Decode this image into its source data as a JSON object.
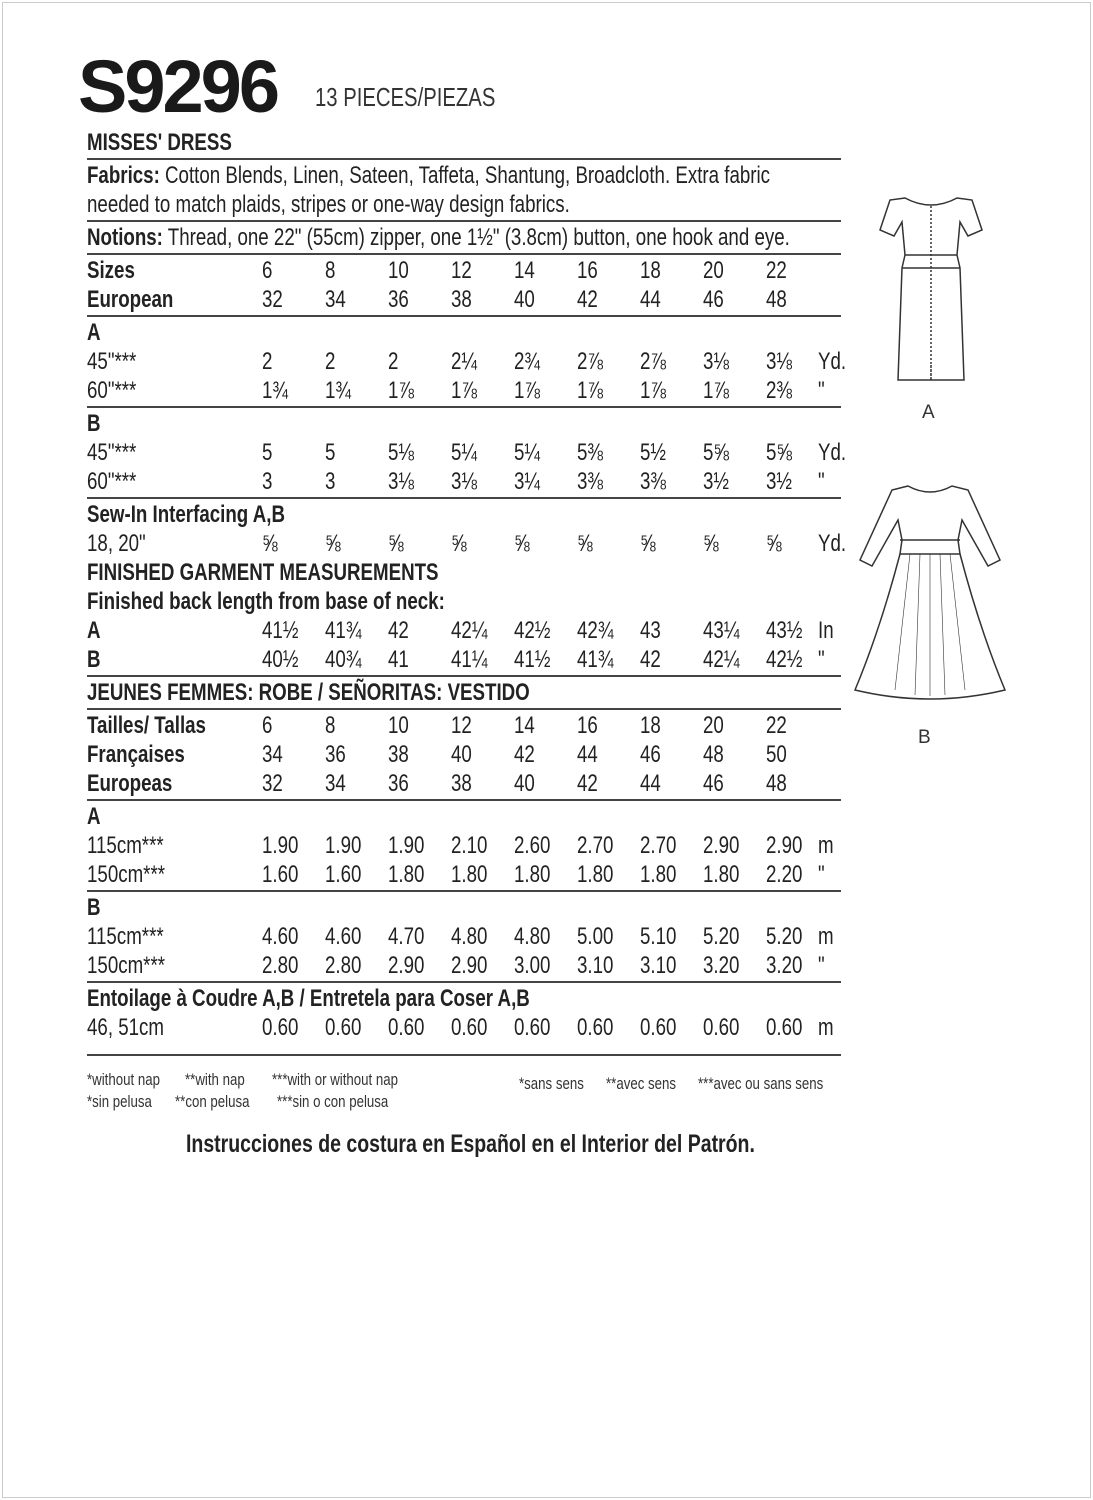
{
  "header": {
    "code": "S9296",
    "pieces": "13 PIECES/PIEZAS"
  },
  "title": "MISSES' DRESS",
  "fabrics": {
    "label": "Fabrics:",
    "line1": " Cotton Blends, Linen, Sateen, Taffeta, Shantung, Broadcloth. Extra fabric",
    "line2": "needed to match plaids, stripes or one-way design fabrics."
  },
  "notions": {
    "label": "Notions:",
    "text": " Thread, one 22\" (55cm) zipper, one 1½\" (3.8cm) button, one hook and eye."
  },
  "sections": [
    {
      "rows": [
        {
          "label": "Sizes",
          "bold": true,
          "values": [
            "6",
            "8",
            "10",
            "12",
            "14",
            "16",
            "18",
            "20",
            "22"
          ],
          "unit": ""
        },
        {
          "label": "European",
          "bold": true,
          "values": [
            "32",
            "34",
            "36",
            "38",
            "40",
            "42",
            "44",
            "46",
            "48"
          ],
          "unit": ""
        }
      ]
    },
    {
      "heading": "A",
      "rows": [
        {
          "label": "45\"***",
          "values": [
            "2",
            "2",
            "2",
            "2¼",
            "2¾",
            "2⅞",
            "2⅞",
            "3⅛",
            "3⅛"
          ],
          "unit": "Yd."
        },
        {
          "label": "60\"***",
          "values": [
            "1¾",
            "1¾",
            "1⅞",
            "1⅞",
            "1⅞",
            "1⅞",
            "1⅞",
            "1⅞",
            "2⅜"
          ],
          "unit": "\""
        }
      ]
    },
    {
      "heading": "B",
      "rows": [
        {
          "label": "45\"***",
          "values": [
            "5",
            "5",
            "5⅛",
            "5¼",
            "5¼",
            "5⅜",
            "5½",
            "5⅝",
            "5⅝"
          ],
          "unit": "Yd."
        },
        {
          "label": "60\"***",
          "values": [
            "3",
            "3",
            "3⅛",
            "3⅛",
            "3¼",
            "3⅜",
            "3⅜",
            "3½",
            "3½"
          ],
          "unit": "\""
        }
      ]
    },
    {
      "heading": "Sew-In Interfacing A,B",
      "noline": true,
      "rows": [
        {
          "label": "18, 20\"",
          "values": [
            "⅝",
            "⅝",
            "⅝",
            "⅝",
            "⅝",
            "⅝",
            "⅝",
            "⅝",
            "⅝"
          ],
          "unit": "Yd."
        }
      ]
    },
    {
      "heading": "FINISHED GARMENT MEASUREMENTS",
      "subheading": "Finished back length from base of neck:",
      "rows": [
        {
          "label": "A",
          "bold": true,
          "values": [
            "41½",
            "41¾",
            "42",
            "42¼",
            "42½",
            "42¾",
            "43",
            "43¼",
            "43½"
          ],
          "unit": "In"
        },
        {
          "label": "B",
          "bold": true,
          "values": [
            "40½",
            "40¾",
            "41",
            "41¼",
            "41½",
            "41¾",
            "42",
            "42¼",
            "42½"
          ],
          "unit": "\""
        }
      ]
    },
    {
      "heading": "JEUNES FEMMES: ROBE / SEÑORITAS: VESTIDO",
      "rows": []
    },
    {
      "rows": [
        {
          "label": "Tailles/ Tallas",
          "bold": true,
          "values": [
            "6",
            "8",
            "10",
            "12",
            "14",
            "16",
            "18",
            "20",
            "22"
          ],
          "unit": ""
        },
        {
          "label": "Françaises",
          "bold": true,
          "values": [
            "34",
            "36",
            "38",
            "40",
            "42",
            "44",
            "46",
            "48",
            "50"
          ],
          "unit": ""
        },
        {
          "label": "Europeas",
          "bold": true,
          "values": [
            "32",
            "34",
            "36",
            "38",
            "40",
            "42",
            "44",
            "46",
            "48"
          ],
          "unit": ""
        }
      ]
    },
    {
      "heading": "A",
      "rows": [
        {
          "label": "115cm***",
          "values": [
            "1.90",
            "1.90",
            "1.90",
            "2.10",
            "2.60",
            "2.70",
            "2.70",
            "2.90",
            "2.90"
          ],
          "unit": "m"
        },
        {
          "label": "150cm***",
          "values": [
            "1.60",
            "1.60",
            "1.80",
            "1.80",
            "1.80",
            "1.80",
            "1.80",
            "1.80",
            "2.20"
          ],
          "unit": "\""
        }
      ]
    },
    {
      "heading": "B",
      "rows": [
        {
          "label": "115cm***",
          "values": [
            "4.60",
            "4.60",
            "4.70",
            "4.80",
            "4.80",
            "5.00",
            "5.10",
            "5.20",
            "5.20"
          ],
          "unit": "m"
        },
        {
          "label": "150cm***",
          "values": [
            "2.80",
            "2.80",
            "2.90",
            "2.90",
            "3.00",
            "3.10",
            "3.10",
            "3.20",
            "3.20"
          ],
          "unit": "\""
        }
      ]
    },
    {
      "heading": "Entoilage à Coudre A,B / Entretela para Coser A,B",
      "rows": [
        {
          "label": "46, 51cm",
          "values": [
            "0.60",
            "0.60",
            "0.60",
            "0.60",
            "0.60",
            "0.60",
            "0.60",
            "0.60",
            "0.60"
          ],
          "unit": "m"
        }
      ]
    }
  ],
  "footnotes": {
    "en": [
      "*without nap",
      "**with nap",
      "***with or without nap"
    ],
    "es": [
      "*sin pelusa",
      "**con pelusa",
      "***sin o con pelusa"
    ],
    "fr": [
      "*sans sens",
      "**avec sens",
      "***avec ou sans sens"
    ]
  },
  "spanish_note": "Instrucciones de costura en Español en el Interior del Patrón.",
  "views": {
    "a": "A",
    "b": "B"
  }
}
